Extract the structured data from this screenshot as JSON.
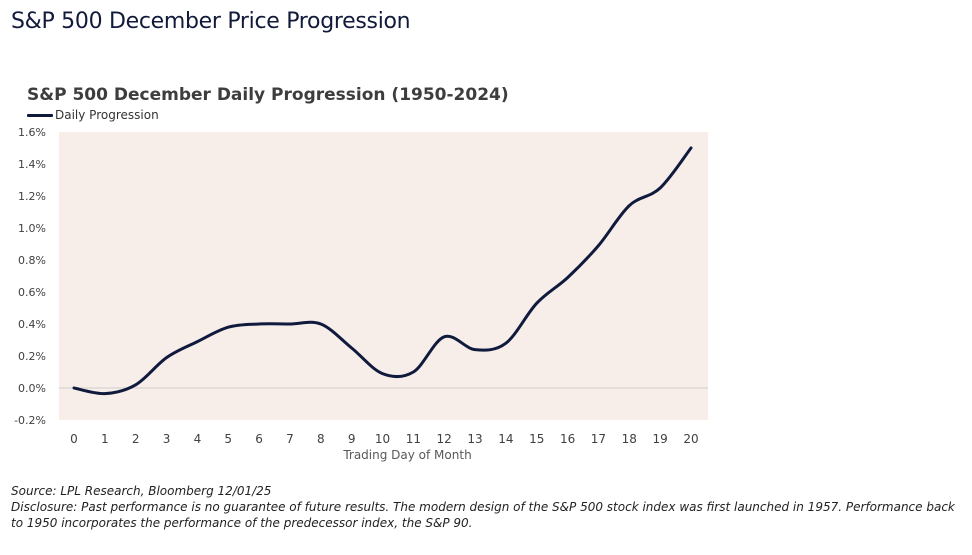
{
  "page_title": "S&P 500 December Price Progression",
  "source": "Source: LPL Research, Bloomberg 12/01/25",
  "disclosure": "Disclosure: Past performance is no guarantee of future results. The modern design of the S&P 500 stock index was first launched in 1957. Performance back to 1950 incorporates the performance of the predecessor index, the S&P 90.",
  "colors": {
    "line": "#0f1a3d",
    "plot_background": "#f7ede9",
    "zero_line": "#cfcfcf"
  },
  "chart_data": {
    "type": "line",
    "title": "S&P 500 December Daily Progression (1950-2024)",
    "xlabel": "Trading Day of Month",
    "ylabel": "",
    "legend": "top-left",
    "x": [
      0,
      1,
      2,
      3,
      4,
      5,
      6,
      7,
      8,
      9,
      10,
      11,
      12,
      13,
      14,
      15,
      16,
      17,
      18,
      19,
      20
    ],
    "ylim": [
      -0.2,
      1.6
    ],
    "yticks": [
      "-0.2%",
      "0.0%",
      "0.2%",
      "0.4%",
      "0.6%",
      "0.8%",
      "1.0%",
      "1.2%",
      "1.4%",
      "1.6%"
    ],
    "series": [
      {
        "name": "Daily Progression",
        "values": [
          0.0,
          -0.035,
          0.02,
          0.19,
          0.29,
          0.38,
          0.4,
          0.4,
          0.4,
          0.25,
          0.09,
          0.1,
          0.32,
          0.24,
          0.28,
          0.53,
          0.69,
          0.89,
          1.14,
          1.25,
          1.5
        ]
      }
    ]
  }
}
